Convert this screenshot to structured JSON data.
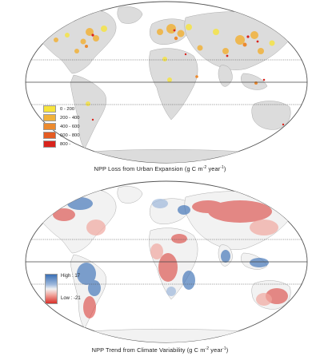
{
  "top_map": {
    "title": "NPP Loss from Urban Expansion (g C m",
    "unit_tail": " year",
    "legend": [
      {
        "label": "0 - 200",
        "color": "#f7e43c"
      },
      {
        "label": "200 - 400",
        "color": "#f1b23a"
      },
      {
        "label": "400 - 600",
        "color": "#ec8a2e"
      },
      {
        "label": "600 - 800",
        "color": "#e45b22"
      },
      {
        "label": "800 -",
        "color": "#d9231c"
      }
    ]
  },
  "bottom_map": {
    "title": "NPP Trend from Climate Variability (g C m",
    "unit_tail": " year",
    "legend_high": "High : 17",
    "legend_low": "Low : -21",
    "colors": {
      "high": "#3a6fb5",
      "mid": "#f2f2f2",
      "low": "#d8302a"
    }
  },
  "superscripts": {
    "m": "-2",
    "year": "-1"
  }
}
